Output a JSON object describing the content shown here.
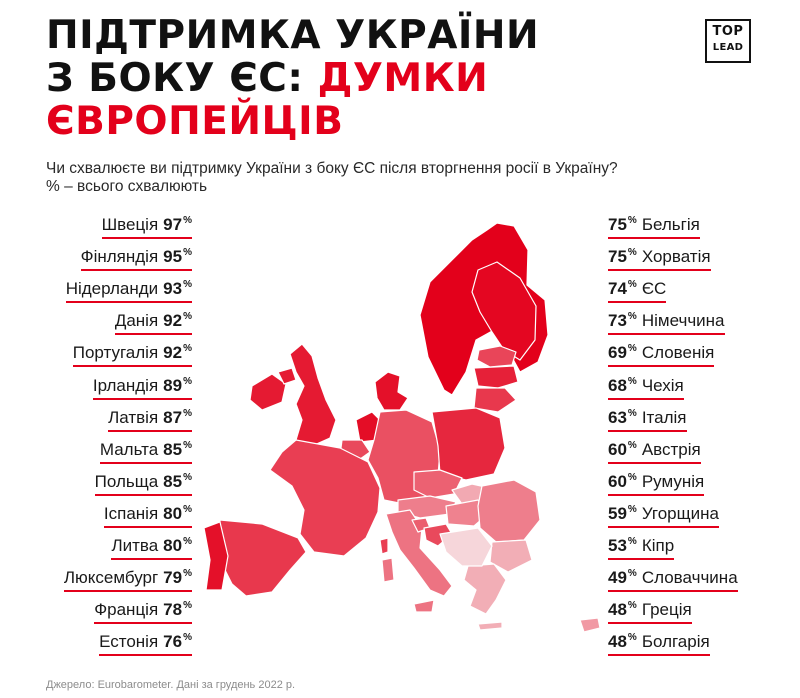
{
  "header": {
    "title_line1": "ПІДТРИМКА УКРАЇНИ",
    "title_line2_black": "З БОКУ ЄС: ",
    "title_line2_red": "ДУМКИ",
    "title_line3_red": "ЄВРОПЕЙЦІВ",
    "logo_top": "TOP",
    "logo_bottom": "LEAD"
  },
  "question": {
    "line1": "Чи схвалюєте ви підтримку України з боку ЄС після вторгнення росії в Україну?",
    "line2": "% – всього схвалюють"
  },
  "colors": {
    "accent": "#e3001b",
    "underline": "#e3001b"
  },
  "chart_data": {
    "type": "table",
    "unit": "%",
    "left_column": [
      {
        "country": "Швеція",
        "value": 97,
        "label": "97"
      },
      {
        "country": "Фінляндія",
        "value": 95,
        "label": "95"
      },
      {
        "country": "Нідерланди",
        "value": 93,
        "label": "93"
      },
      {
        "country": "Данія",
        "value": 92,
        "label": "92"
      },
      {
        "country": "Португалія",
        "value": 92,
        "label": "92"
      },
      {
        "country": "Ірландія",
        "value": 89,
        "label": "89"
      },
      {
        "country": "Латвія",
        "value": 87,
        "label": "87"
      },
      {
        "country": "Мальта",
        "value": 85,
        "label": "85"
      },
      {
        "country": "Польща",
        "value": 85,
        "label": "85"
      },
      {
        "country": "Іспанія",
        "value": 80,
        "label": "80"
      },
      {
        "country": "Литва",
        "value": 80,
        "label": "80"
      },
      {
        "country": "Люксембург",
        "value": 79,
        "label": "79"
      },
      {
        "country": "Франція",
        "value": 78,
        "label": "78"
      },
      {
        "country": "Естонія",
        "value": 76,
        "label": "76"
      }
    ],
    "right_column": [
      {
        "country": "Бельгія",
        "value": 75,
        "label": "75"
      },
      {
        "country": "Хорватія",
        "value": 75,
        "label": "75"
      },
      {
        "country": "ЄС",
        "value": 74,
        "label": "74"
      },
      {
        "country": "Німеччина",
        "value": 73,
        "label": "73"
      },
      {
        "country": "Словенія",
        "value": 69,
        "label": "69"
      },
      {
        "country": "Чехія",
        "value": 68,
        "label": "68"
      },
      {
        "country": "Італія",
        "value": 63,
        "label": "63"
      },
      {
        "country": "Австрія",
        "value": 60,
        "label": "60"
      },
      {
        "country": "Румунія",
        "value": 60,
        "label": "60"
      },
      {
        "country": "Угорщина",
        "value": 59,
        "label": "59"
      },
      {
        "country": "Кіпр",
        "value": 53,
        "label": "53"
      },
      {
        "country": "Словаччина",
        "value": 49,
        "label": "49"
      },
      {
        "country": "Греція",
        "value": 48,
        "label": "48"
      },
      {
        "country": "Болгарія",
        "value": 48,
        "label": "48"
      }
    ]
  },
  "map": {
    "regions": [
      {
        "name": "norway-sweden-finland",
        "value": 97
      },
      {
        "name": "finland",
        "value": 95
      },
      {
        "name": "estonia",
        "value": 76
      },
      {
        "name": "latvia",
        "value": 87
      },
      {
        "name": "lithuania",
        "value": 80
      },
      {
        "name": "denmark",
        "value": 92
      },
      {
        "name": "ireland",
        "value": 89
      },
      {
        "name": "uk",
        "value": 89
      },
      {
        "name": "netherlands",
        "value": 93
      },
      {
        "name": "belgium",
        "value": 75
      },
      {
        "name": "germany",
        "value": 73
      },
      {
        "name": "poland",
        "value": 85
      },
      {
        "name": "czechia",
        "value": 68
      },
      {
        "name": "slovakia",
        "value": 49
      },
      {
        "name": "austria",
        "value": 60
      },
      {
        "name": "hungary",
        "value": 59
      },
      {
        "name": "romania",
        "value": 60
      },
      {
        "name": "bulgaria",
        "value": 48
      },
      {
        "name": "greece",
        "value": 48
      },
      {
        "name": "france",
        "value": 78
      },
      {
        "name": "spain",
        "value": 80
      },
      {
        "name": "portugal",
        "value": 92
      },
      {
        "name": "italy",
        "value": 63
      },
      {
        "name": "slovenia",
        "value": 69
      },
      {
        "name": "croatia",
        "value": 75
      },
      {
        "name": "balkans",
        "value": 40
      },
      {
        "name": "cyprus",
        "value": 53
      }
    ]
  },
  "footer": {
    "source": "Джерело: Eurobarometer. Дані за грудень 2022 р."
  }
}
